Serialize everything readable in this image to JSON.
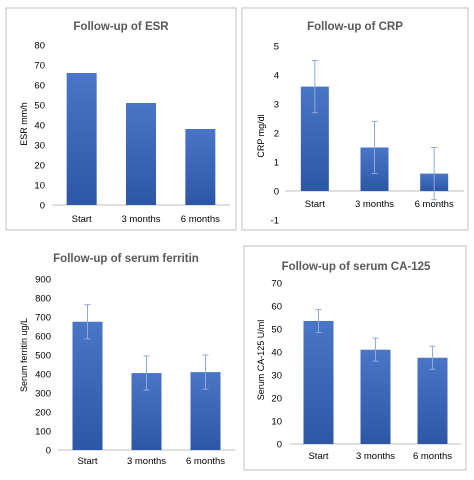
{
  "colors": {
    "bar_top": "#4a76c8",
    "bar_bottom": "#2d56a6",
    "error_bar": "#8ea9db"
  },
  "chart_data": [
    {
      "type": "bar",
      "title": "Follow-up of ESR",
      "ylabel": "ESR mm/h",
      "xlabel": "",
      "categories": [
        "Start",
        "3 months",
        "6 months"
      ],
      "values": [
        66,
        51,
        38
      ],
      "errors": null,
      "ylim": [
        0,
        80
      ],
      "yticks": [
        0,
        10,
        20,
        30,
        40,
        50,
        60,
        70,
        80
      ],
      "grid": false
    },
    {
      "type": "bar",
      "title": "Follow-up of CRP",
      "ylabel": "CRP mg/dl",
      "xlabel": "",
      "categories": [
        "Start",
        "3 months",
        "6 months"
      ],
      "values": [
        3.6,
        1.5,
        0.6
      ],
      "errors": [
        0.9,
        0.9,
        0.9
      ],
      "ylim": [
        -1,
        5
      ],
      "yticks": [
        -1,
        0,
        1,
        2,
        3,
        4,
        5
      ],
      "grid": false
    },
    {
      "type": "bar",
      "title": "Follow-up of serum ferritin",
      "ylabel": "Serum ferritin ug/L",
      "xlabel": "",
      "categories": [
        "Start",
        "3 months",
        "6 months"
      ],
      "values": [
        675,
        405,
        410
      ],
      "errors": [
        90,
        90,
        90
      ],
      "ylim": [
        0,
        900
      ],
      "yticks": [
        0,
        100,
        200,
        300,
        400,
        500,
        600,
        700,
        800,
        900
      ],
      "grid": false
    },
    {
      "type": "bar",
      "title": "Follow-up of serum CA-125",
      "ylabel": "Serum CA-125 U/ml",
      "xlabel": "",
      "categories": [
        "Start",
        "3 months",
        "6 months"
      ],
      "values": [
        53.5,
        41,
        37.5
      ],
      "errors": [
        5,
        5,
        5
      ],
      "ylim": [
        0,
        70
      ],
      "yticks": [
        0,
        10,
        20,
        30,
        40,
        50,
        60,
        70
      ],
      "grid": false
    }
  ]
}
